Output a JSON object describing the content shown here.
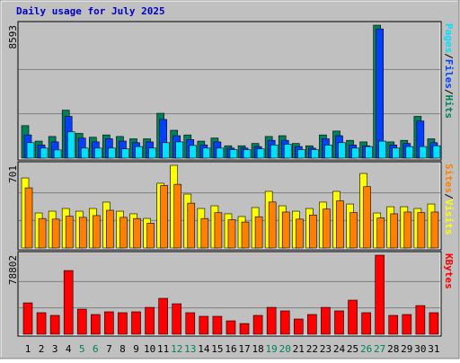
{
  "chart_data": [
    {
      "type": "bar",
      "title": "Daily usage for July 2025",
      "ylim": [
        0,
        8593
      ],
      "yticks": [
        8593
      ],
      "legend_separator": "/",
      "series": [
        {
          "name": "Hits",
          "color": "#00805c",
          "values": [
            2100,
            1100,
            1400,
            3100,
            1600,
            1350,
            1500,
            1400,
            1250,
            1250,
            2900,
            1800,
            1500,
            1100,
            1300,
            800,
            800,
            950,
            1400,
            1450,
            950,
            800,
            1500,
            1750,
            1150,
            1050,
            8593,
            1050,
            1150,
            2700,
            1250
          ]
        },
        {
          "name": "Files",
          "color": "#0040ff",
          "values": [
            1500,
            850,
            1050,
            2700,
            1300,
            1050,
            1250,
            1100,
            1000,
            1050,
            2500,
            1450,
            1200,
            850,
            1050,
            650,
            650,
            750,
            1150,
            1150,
            750,
            650,
            1250,
            1450,
            850,
            800,
            8350,
            850,
            950,
            2400,
            1000
          ]
        },
        {
          "name": "Pages",
          "color": "#00e0ff",
          "values": [
            1000,
            650,
            530,
            1700,
            650,
            650,
            650,
            600,
            750,
            650,
            1000,
            1050,
            820,
            650,
            650,
            550,
            550,
            600,
            850,
            900,
            550,
            550,
            850,
            1000,
            650,
            750,
            1100,
            650,
            750,
            750,
            800
          ]
        }
      ]
    },
    {
      "type": "bar",
      "ylim": [
        0,
        701
      ],
      "yticks": [
        701
      ],
      "legend_separator": "/",
      "series": [
        {
          "name": "Visits",
          "color": "#ffff00",
          "values": [
            594,
            297,
            312,
            335,
            312,
            335,
            389,
            312,
            290,
            251,
            549,
            701,
            457,
            335,
            358,
            290,
            267,
            343,
            480,
            358,
            312,
            335,
            389,
            480,
            373,
            632,
            297,
            350,
            350,
            335,
            373
          ]
        },
        {
          "name": "Sites",
          "color": "#ff8000",
          "values": [
            510,
            250,
            245,
            270,
            260,
            275,
            320,
            260,
            250,
            210,
            530,
            540,
            380,
            250,
            300,
            240,
            220,
            265,
            390,
            305,
            245,
            280,
            330,
            400,
            300,
            520,
            255,
            290,
            305,
            300,
            305
          ]
        }
      ]
    },
    {
      "type": "bar",
      "ylim": [
        0,
        78802
      ],
      "yticks": [
        78802
      ],
      "categories": [
        "1",
        "2",
        "3",
        "4",
        "5",
        "6",
        "7",
        "8",
        "9",
        "10",
        "11",
        "12",
        "13",
        "14",
        "15",
        "16",
        "17",
        "18",
        "19",
        "20",
        "21",
        "22",
        "23",
        "24",
        "25",
        "26",
        "27",
        "28",
        "29",
        "30",
        "31"
      ],
      "label_colors": [
        "#000",
        "#000",
        "#000",
        "#000",
        "#00805c",
        "#00805c",
        "#000",
        "#000",
        "#000",
        "#000",
        "#000",
        "#00805c",
        "#00805c",
        "#000",
        "#000",
        "#000",
        "#000",
        "#000",
        "#00805c",
        "#00805c",
        "#000",
        "#000",
        "#000",
        "#000",
        "#000",
        "#00805c",
        "#00805c",
        "#000",
        "#000",
        "#000",
        "#000"
      ],
      "series": [
        {
          "name": "KBytes",
          "color": "#ff0000",
          "values": [
            31300,
            21500,
            18800,
            63500,
            25000,
            19700,
            22400,
            21500,
            22400,
            26800,
            35800,
            30400,
            21500,
            17900,
            17900,
            13400,
            10700,
            18800,
            26800,
            23300,
            15200,
            19700,
            26800,
            23300,
            34000,
            21500,
            78802,
            18800,
            19700,
            28600,
            21500
          ]
        }
      ]
    }
  ]
}
